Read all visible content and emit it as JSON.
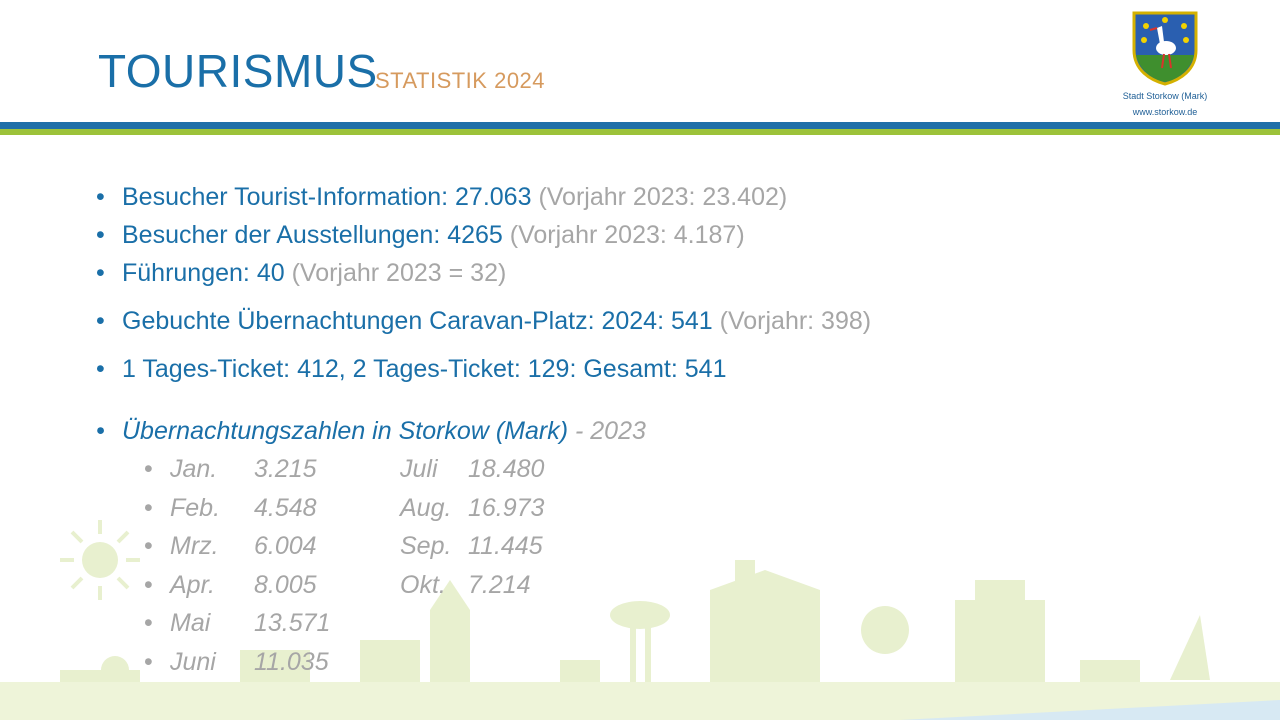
{
  "header": {
    "title": "TOURISMUS",
    "subtitle": "STATISTIK 2024",
    "logo_line1": "Stadt Storkow (Mark)",
    "logo_line2": "www.storkow.de"
  },
  "bullets": [
    {
      "main": "Besucher Tourist-Information: 27.063 ",
      "prev": " (Vorjahr 2023: 23.402)"
    },
    {
      "main": "Besucher der Ausstellungen:  4265",
      "prev": " (Vorjahr 2023: 4.187)"
    },
    {
      "main": "Führungen: 40",
      "prev": " (Vorjahr 2023 = 32)"
    },
    {
      "main": "Gebuchte Übernachtungen Caravan-Platz:  2024: 541",
      "prev": " (Vorjahr: 398)"
    },
    {
      "main": "1 Tages-Ticket: 412, 2 Tages-Ticket: 129: Gesamt: 541",
      "prev": ""
    }
  ],
  "overnight": {
    "heading": "Übernachtungszahlen  in Storkow (Mark)",
    "year": " - 2023",
    "rows": [
      {
        "m1": "Jan.",
        "v1": "3.215",
        "m2": "Juli",
        "v2": "18.480"
      },
      {
        "m1": "Feb.",
        "v1": "4.548",
        "m2": "Aug.",
        "v2": "16.973"
      },
      {
        "m1": "Mrz.",
        "v1": "6.004",
        "m2": "Sep.",
        "v2": "11.445"
      },
      {
        "m1": "Apr.",
        "v1": "8.005",
        "m2": "Okt.",
        "v2": "7.214"
      },
      {
        "m1": "Mai",
        "v1": "13.571",
        "m2": "",
        "v2": ""
      },
      {
        "m1": "Juni",
        "v1": "11.035",
        "m2": "",
        "v2": ""
      }
    ]
  },
  "colors": {
    "blue": "#1a6fa8",
    "grey": "#a6a6a6",
    "green": "#9cc23a",
    "orange": "#d69a5e"
  }
}
